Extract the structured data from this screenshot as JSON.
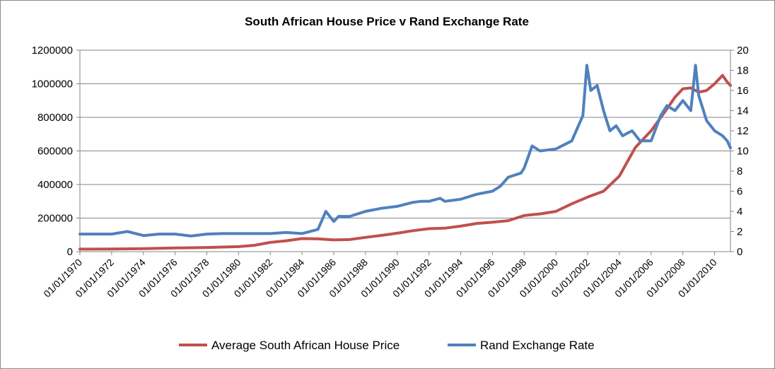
{
  "chart_data": {
    "type": "line",
    "title": "South African House Price v Rand Exchange Rate",
    "xlabel": "",
    "ylabel": "",
    "y2label": "",
    "x_ticks": [
      "01/01/1970",
      "01/01/1972",
      "01/01/1974",
      "01/01/1976",
      "01/01/1978",
      "01/01/1980",
      "01/01/1982",
      "01/01/1984",
      "01/01/1986",
      "01/01/1988",
      "01/01/1990",
      "01/01/1992",
      "01/01/1994",
      "01/01/1996",
      "01/01/1998",
      "01/01/2000",
      "01/01/2002",
      "01/01/2004",
      "01/01/2006",
      "01/01/2008",
      "01/01/2010"
    ],
    "xlim": [
      1970.0,
      2011.0
    ],
    "ylim": [
      0,
      1200000
    ],
    "y_ticks": [
      "0",
      "200000",
      "400000",
      "600000",
      "800000",
      "1000000",
      "1200000"
    ],
    "y2lim": [
      0,
      20
    ],
    "y2_ticks": [
      "0",
      "2",
      "4",
      "6",
      "8",
      "10",
      "12",
      "14",
      "16",
      "18",
      "20"
    ],
    "grid": true,
    "legend_position": "bottom",
    "series": [
      {
        "name": "Average South African House Price",
        "axis": "left",
        "color": "#C0504D",
        "x": [
          1970,
          1972,
          1974,
          1976,
          1978,
          1980,
          1981,
          1982,
          1983,
          1984,
          1985,
          1986,
          1987,
          1988,
          1989,
          1990,
          1991,
          1992,
          1993,
          1994,
          1995,
          1996,
          1997,
          1998,
          1999,
          2000,
          2001,
          2002,
          2003,
          2004,
          2005,
          2006,
          2007,
          2007.5,
          2008,
          2008.5,
          2009,
          2009.5,
          2010,
          2010.5,
          2010.8,
          2011
        ],
        "values": [
          15000,
          16000,
          18000,
          22000,
          25000,
          30000,
          38000,
          55000,
          65000,
          78000,
          76000,
          70000,
          72000,
          85000,
          97000,
          110000,
          125000,
          137000,
          140000,
          152000,
          168000,
          175000,
          185000,
          215000,
          225000,
          240000,
          285000,
          325000,
          360000,
          450000,
          620000,
          720000,
          850000,
          920000,
          970000,
          975000,
          950000,
          960000,
          1000000,
          1050000,
          1010000,
          990000
        ]
      },
      {
        "name": "Rand Exchange Rate",
        "axis": "right",
        "color": "#4F81BD",
        "x": [
          1970,
          1972,
          1973,
          1974,
          1975,
          1976,
          1977,
          1978,
          1979,
          1980,
          1981,
          1982,
          1983,
          1984,
          1985,
          1985.5,
          1986,
          1986.3,
          1987,
          1988,
          1989,
          1990,
          1991,
          1991.5,
          1992,
          1992.7,
          1993,
          1994,
          1995,
          1996,
          1996.5,
          1997,
          1997.8,
          1998,
          1998.5,
          1999,
          2000,
          2001,
          2001.7,
          2001.95,
          2002.2,
          2002.6,
          2003,
          2003.4,
          2003.8,
          2004.2,
          2004.8,
          2005.3,
          2006,
          2006.6,
          2007,
          2007.5,
          2008,
          2008.5,
          2008.8,
          2009,
          2009.5,
          2010,
          2010.5,
          2010.8,
          2011
        ],
        "values": [
          1.75,
          1.75,
          2.0,
          1.6,
          1.75,
          1.75,
          1.55,
          1.75,
          1.8,
          1.8,
          1.8,
          1.8,
          1.9,
          1.8,
          2.2,
          4.0,
          3.0,
          3.5,
          3.5,
          4.0,
          4.3,
          4.5,
          4.9,
          5.0,
          5.0,
          5.3,
          5.0,
          5.2,
          5.7,
          6.0,
          6.5,
          7.4,
          7.8,
          8.3,
          10.5,
          10.0,
          10.2,
          11.0,
          13.5,
          18.5,
          16.0,
          16.5,
          14.0,
          12.0,
          12.5,
          11.5,
          12.0,
          11.0,
          11.0,
          13.5,
          14.5,
          14.0,
          15.0,
          14.0,
          18.5,
          15.5,
          13.0,
          12.0,
          11.5,
          11.0,
          10.3
        ]
      }
    ]
  }
}
